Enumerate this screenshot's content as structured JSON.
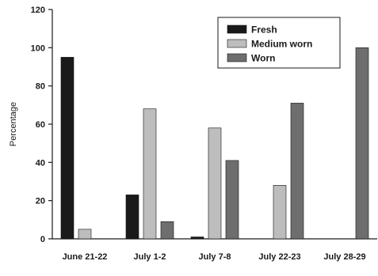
{
  "chart_data": {
    "type": "bar",
    "title": "",
    "xlabel": "",
    "ylabel": "Percentage",
    "ylim": [
      0,
      120
    ],
    "yticks": [
      0,
      20,
      40,
      60,
      80,
      100,
      120
    ],
    "categories": [
      "June 21-22",
      "July 1-2",
      "July 7-8",
      "July 22-23",
      "July 28-29"
    ],
    "series": [
      {
        "name": "Fresh",
        "color": "#1a1a1a",
        "values": [
          95,
          23,
          1,
          0,
          0
        ]
      },
      {
        "name": "Medium worn",
        "color": "#bdbdbd",
        "values": [
          5,
          68,
          58,
          28,
          0
        ]
      },
      {
        "name": "Worn",
        "color": "#6e6e6e",
        "values": [
          0,
          9,
          41,
          71,
          100
        ]
      }
    ],
    "legend_position": "top-right",
    "grid": false
  }
}
